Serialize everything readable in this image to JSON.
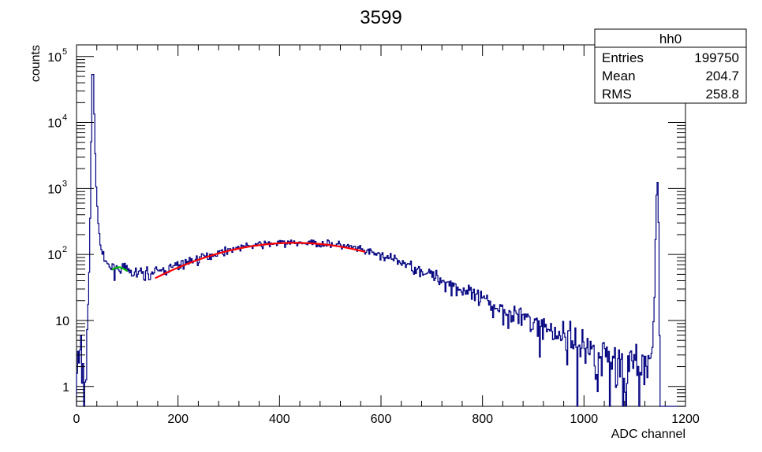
{
  "chart_data": {
    "type": "histogram",
    "title": "3599",
    "xlabel": "ADC channel",
    "ylabel": "counts",
    "xlim": [
      0,
      1200
    ],
    "ylim": [
      0.5,
      150000
    ],
    "yscale": "log",
    "grid": false,
    "x_ticks": [
      0,
      200,
      400,
      600,
      800,
      1000,
      1200
    ],
    "y_ticks": [
      {
        "value": 1,
        "label": "1"
      },
      {
        "value": 10,
        "label": "10"
      },
      {
        "value": 100,
        "label": "10",
        "exp": "2"
      },
      {
        "value": 1000,
        "label": "10",
        "exp": "3"
      },
      {
        "value": 10000,
        "label": "10",
        "exp": "4"
      },
      {
        "value": 100000,
        "label": "10",
        "exp": "5"
      }
    ],
    "histogram_color": "#000080",
    "histogram_profile": [
      [
        0,
        2
      ],
      [
        10,
        3
      ],
      [
        16,
        0.5
      ],
      [
        20,
        5
      ],
      [
        24,
        20
      ],
      [
        28,
        900
      ],
      [
        30,
        30000
      ],
      [
        32,
        95000
      ],
      [
        34,
        30000
      ],
      [
        36,
        6000
      ],
      [
        38,
        1800
      ],
      [
        40,
        700
      ],
      [
        43,
        300
      ],
      [
        46,
        160
      ],
      [
        50,
        110
      ],
      [
        55,
        80
      ],
      [
        60,
        70
      ],
      [
        70,
        62
      ],
      [
        80,
        63
      ],
      [
        90,
        62
      ],
      [
        100,
        56
      ],
      [
        110,
        52
      ],
      [
        120,
        52
      ],
      [
        130,
        52
      ],
      [
        140,
        52
      ],
      [
        150,
        52
      ],
      [
        160,
        55
      ],
      [
        180,
        60
      ],
      [
        200,
        68
      ],
      [
        220,
        78
      ],
      [
        240,
        86
      ],
      [
        260,
        96
      ],
      [
        280,
        107
      ],
      [
        300,
        118
      ],
      [
        320,
        127
      ],
      [
        340,
        135
      ],
      [
        360,
        140
      ],
      [
        380,
        145
      ],
      [
        400,
        148
      ],
      [
        420,
        150
      ],
      [
        440,
        150
      ],
      [
        460,
        149
      ],
      [
        480,
        147
      ],
      [
        500,
        145
      ],
      [
        520,
        138
      ],
      [
        540,
        128
      ],
      [
        560,
        117
      ],
      [
        580,
        107
      ],
      [
        600,
        97
      ],
      [
        620,
        86
      ],
      [
        640,
        76
      ],
      [
        660,
        66
      ],
      [
        680,
        57
      ],
      [
        700,
        49
      ],
      [
        720,
        41
      ],
      [
        740,
        35
      ],
      [
        760,
        29
      ],
      [
        780,
        24
      ],
      [
        800,
        20
      ],
      [
        820,
        17
      ],
      [
        840,
        15
      ],
      [
        860,
        13
      ],
      [
        880,
        11
      ],
      [
        900,
        9
      ],
      [
        920,
        8
      ],
      [
        940,
        7
      ],
      [
        960,
        6
      ],
      [
        980,
        5
      ],
      [
        1000,
        4
      ],
      [
        1020,
        3.5
      ],
      [
        1040,
        3
      ],
      [
        1060,
        2.5
      ],
      [
        1080,
        2.2
      ],
      [
        1100,
        2
      ],
      [
        1120,
        1.8
      ],
      [
        1130,
        2
      ],
      [
        1136,
        5
      ],
      [
        1140,
        60
      ],
      [
        1143,
        800
      ],
      [
        1145,
        1200
      ],
      [
        1147,
        300
      ],
      [
        1150,
        0.5
      ],
      [
        1200,
        0.5
      ]
    ],
    "fits": [
      {
        "color": "#00c000",
        "x": [
          70,
          100
        ],
        "peak_x": 83,
        "peak_y": 64,
        "width": 13,
        "base": 50
      },
      {
        "color": "#ff0000",
        "x": [
          155,
          570
        ],
        "peak_x": 430,
        "peak_y": 150,
        "width": 175,
        "base": 0
      }
    ],
    "stats_box": {
      "name": "hh0",
      "rows": [
        {
          "label": "Entries",
          "value": "199750"
        },
        {
          "label": "Mean",
          "value": "204.7"
        },
        {
          "label": "RMS",
          "value": "258.8"
        }
      ]
    }
  }
}
